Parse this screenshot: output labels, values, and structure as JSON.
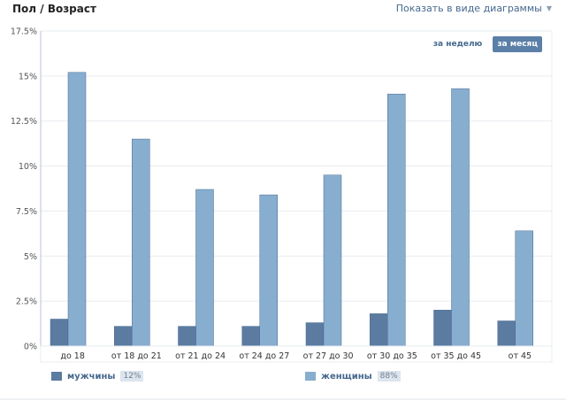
{
  "header": {
    "title": "Пол / Возраст",
    "view_toggle_label": "Показать в виде диаграммы"
  },
  "period_toggle": {
    "week_label": "за неделю",
    "month_label": "за месяц",
    "active": "month"
  },
  "legend": {
    "male": {
      "label": "мужчины",
      "share": "12%"
    },
    "female": {
      "label": "женщины",
      "share": "88%"
    }
  },
  "colors": {
    "male": "#5b7ba1",
    "female": "#87adcf",
    "accent": "#45688e",
    "grid": "#e7ecf0",
    "axis": "#b9c4cf"
  },
  "chart_data": {
    "type": "bar",
    "categories": [
      "до 18",
      "от 18 до 21",
      "от 21 до 24",
      "от 24 до 27",
      "от 27 до 30",
      "от 30 до 35",
      "от 35 до 45",
      "от 45"
    ],
    "series": [
      {
        "name": "мужчины",
        "values": [
          1.5,
          1.1,
          1.1,
          1.1,
          1.3,
          1.8,
          2.0,
          1.4
        ]
      },
      {
        "name": "женщины",
        "values": [
          15.2,
          11.5,
          8.7,
          8.4,
          9.5,
          14.0,
          14.3,
          6.4
        ]
      }
    ],
    "yticks": [
      "0%",
      "2.5%",
      "5%",
      "7.5%",
      "10%",
      "12.5%",
      "15%",
      "17.5%"
    ],
    "ylim": [
      0,
      17.5
    ],
    "grid": true,
    "legend_position": "bottom"
  }
}
